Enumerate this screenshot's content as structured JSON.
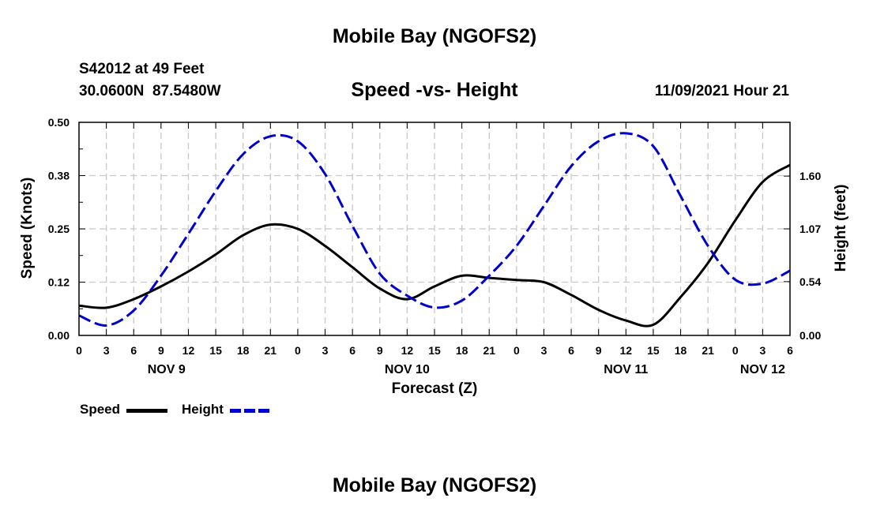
{
  "page": {
    "top_title": "Mobile Bay (NGOFS2)",
    "bottom_title": "Mobile Bay (NGOFS2)"
  },
  "station": {
    "id_line": "S42012 at 49 Feet",
    "coord_line": "30.0600N  87.5480W"
  },
  "subtitle": "Speed -vs- Height",
  "timestamp": "11/09/2021 Hour 21",
  "legend": {
    "speed_label": "Speed",
    "height_label": "Height"
  },
  "colors": {
    "speed": "#000000",
    "height": "#0000cc",
    "grid": "#c8c8c8"
  },
  "chart_data": {
    "type": "line",
    "title": "Speed -vs- Height",
    "xlabel": "Forecast (Z)",
    "ylabel_left": "Speed (Knots)",
    "ylabel_right": "Height (feet)",
    "xlim_hours": [
      0,
      78
    ],
    "ylim_left": [
      0,
      0.5
    ],
    "ylim_right": [
      0,
      2.14
    ],
    "grid": true,
    "x_tick_hours": [
      0,
      3,
      6,
      9,
      12,
      15,
      18,
      21,
      24,
      27,
      30,
      33,
      36,
      39,
      42,
      45,
      48,
      51,
      54,
      57,
      60,
      63,
      66,
      69,
      72,
      75,
      78
    ],
    "x_tick_labels": [
      "0",
      "3",
      "6",
      "9",
      "12",
      "15",
      "18",
      "21",
      "0",
      "3",
      "6",
      "9",
      "12",
      "15",
      "18",
      "21",
      "0",
      "3",
      "6",
      "9",
      "12",
      "15",
      "18",
      "21",
      "0",
      "3",
      "6"
    ],
    "date_labels": [
      {
        "label": "NOV 9",
        "hour": 9.6
      },
      {
        "label": "NOV 10",
        "hour": 36
      },
      {
        "label": "NOV 11",
        "hour": 60
      },
      {
        "label": "NOV 12",
        "hour": 75
      }
    ],
    "left_ticks": [
      {
        "value": 0,
        "label": "0.00"
      },
      {
        "value": 0.125,
        "label": "0.12"
      },
      {
        "value": 0.25,
        "label": "0.25"
      },
      {
        "value": 0.375,
        "label": "0.38"
      },
      {
        "value": 0.5,
        "label": "0.50"
      }
    ],
    "right_ticks": [
      {
        "value": 0,
        "label": "0.00"
      },
      {
        "value": 0.54,
        "label": "0.54"
      },
      {
        "value": 1.07,
        "label": "1.07"
      },
      {
        "value": 1.6,
        "label": "1.60"
      }
    ],
    "series": [
      {
        "name": "Speed",
        "axis": "left",
        "style": "solid",
        "x": [
          0,
          3,
          6,
          9,
          12,
          15,
          18,
          21,
          24,
          27,
          30,
          33,
          36,
          39,
          42,
          45,
          48,
          51,
          54,
          57,
          60,
          63,
          66,
          69,
          72,
          75,
          78
        ],
        "values": [
          0.07,
          0.065,
          0.085,
          0.115,
          0.15,
          0.19,
          0.235,
          0.26,
          0.25,
          0.21,
          0.16,
          0.11,
          0.085,
          0.115,
          0.14,
          0.135,
          0.13,
          0.125,
          0.095,
          0.06,
          0.035,
          0.025,
          0.09,
          0.17,
          0.27,
          0.36,
          0.4
        ]
      },
      {
        "name": "Height",
        "axis": "right",
        "style": "dashed",
        "x": [
          0,
          3,
          6,
          9,
          12,
          15,
          18,
          21,
          24,
          27,
          30,
          33,
          36,
          39,
          42,
          45,
          48,
          51,
          54,
          57,
          60,
          63,
          66,
          69,
          72,
          75,
          78
        ],
        "values": [
          0.2,
          0.1,
          0.25,
          0.6,
          1.02,
          1.45,
          1.82,
          2.0,
          1.95,
          1.62,
          1.1,
          0.62,
          0.4,
          0.28,
          0.35,
          0.6,
          0.9,
          1.3,
          1.7,
          1.95,
          2.03,
          1.9,
          1.4,
          0.9,
          0.56,
          0.52,
          0.65
        ]
      }
    ]
  }
}
